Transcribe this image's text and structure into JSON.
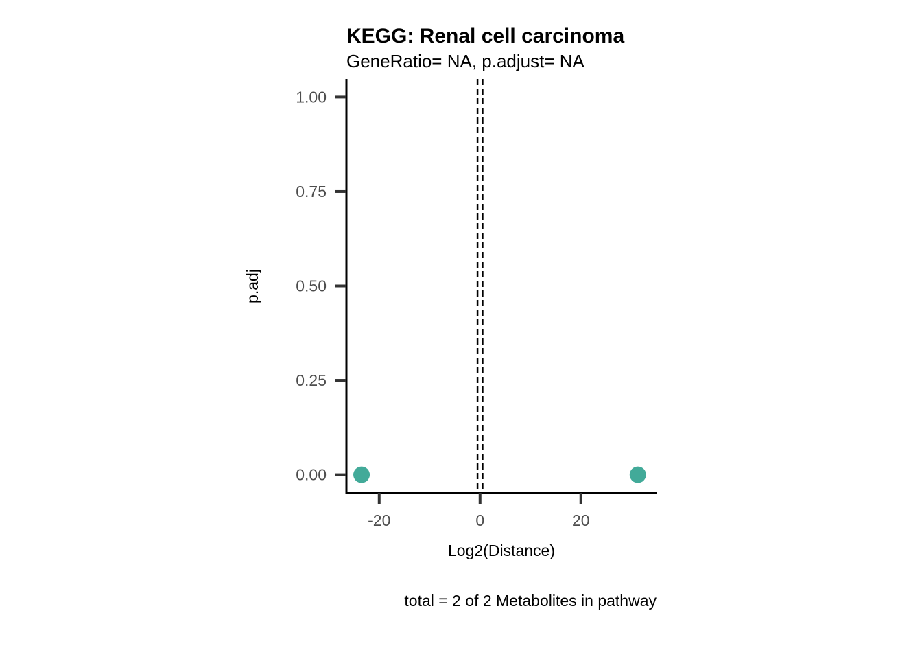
{
  "chart_data": {
    "type": "scatter",
    "title": "KEGG: Renal cell carcinoma",
    "subtitle": "GeneRatio= NA, p.adjust= NA",
    "xlabel": "Log2(Distance)",
    "ylabel": "p.adj",
    "caption": "total = 2 of 2 Metabolites in pathway",
    "xlim": [
      -26.5,
      35
    ],
    "ylim": [
      -0.048,
      1.048
    ],
    "xticks": [
      -20,
      0,
      20
    ],
    "xtick_labels": [
      "-20",
      "0",
      "20"
    ],
    "yticks": [
      0,
      0.25,
      0.5,
      0.75,
      1
    ],
    "ytick_labels": [
      "0.00",
      "0.25",
      "0.50",
      "0.75",
      "1.00"
    ],
    "vlines": [
      -0.5,
      0.5
    ],
    "grid": false,
    "legend": "none",
    "point_color": "#42AA99",
    "points": [
      {
        "x": -23.5,
        "y": 0
      },
      {
        "x": 31.3,
        "y": 0
      }
    ]
  }
}
